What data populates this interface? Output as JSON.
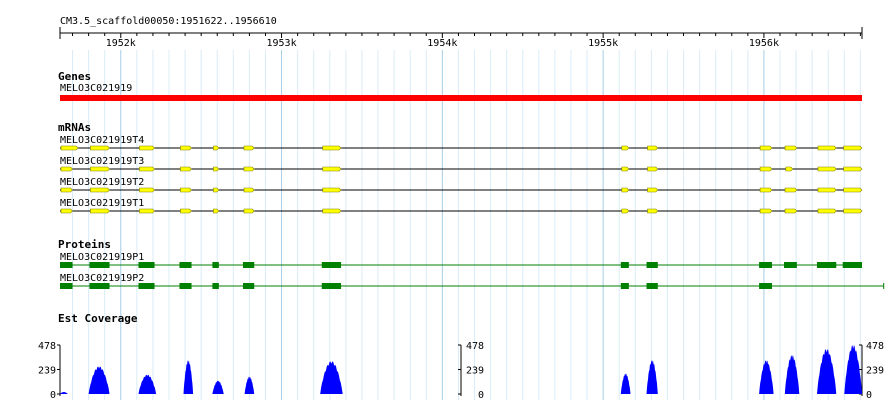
{
  "region_label": "CM3.5_scaffold00050:1951622..1956610",
  "ruler": {
    "start": 1951622,
    "end": 1956610,
    "ticks": [
      {
        "pos": 1952000,
        "label": "1952k"
      },
      {
        "pos": 1953000,
        "label": "1953k"
      },
      {
        "pos": 1954000,
        "label": "1954k"
      },
      {
        "pos": 1955000,
        "label": "1955k"
      },
      {
        "pos": 1956000,
        "label": "1956k"
      }
    ]
  },
  "tracks": {
    "genes": {
      "label": "Genes",
      "color": "#ff0000",
      "features": [
        {
          "name": "MELO3C021919",
          "start": 1951622,
          "end": 1956610
        }
      ]
    },
    "mrnas": {
      "label": "mRNAs",
      "exon_color": "#ffff00",
      "transcripts": [
        {
          "name": "MELO3C021919T4",
          "end": 1956610,
          "exons": [
            [
              1951622,
              1951735
            ],
            [
              1951805,
              1951930
            ],
            [
              1952110,
              1952210
            ],
            [
              1952365,
              1952440
            ],
            [
              1952570,
              1952610
            ],
            [
              1952760,
              1952830
            ],
            [
              1953250,
              1953370
            ],
            [
              1955110,
              1955160
            ],
            [
              1955270,
              1955340
            ],
            [
              1955970,
              1956050
            ],
            [
              1956125,
              1956205
            ],
            [
              1956330,
              1956450
            ],
            [
              1956490,
              1956610
            ]
          ]
        },
        {
          "name": "MELO3C021919T3",
          "end": 1956610,
          "exons": [
            [
              1951622,
              1951700
            ],
            [
              1951805,
              1951930
            ],
            [
              1952110,
              1952210
            ],
            [
              1952365,
              1952440
            ],
            [
              1952570,
              1952610
            ],
            [
              1952760,
              1952830
            ],
            [
              1953250,
              1953370
            ],
            [
              1955110,
              1955160
            ],
            [
              1955270,
              1955340
            ],
            [
              1955970,
              1956050
            ],
            [
              1956130,
              1956180
            ],
            [
              1956330,
              1956450
            ],
            [
              1956490,
              1956610
            ]
          ]
        },
        {
          "name": "MELO3C021919T2",
          "end": 1956610,
          "exons": [
            [
              1951622,
              1951700
            ],
            [
              1951805,
              1951930
            ],
            [
              1952110,
              1952210
            ],
            [
              1952365,
              1952440
            ],
            [
              1952570,
              1952610
            ],
            [
              1952760,
              1952830
            ],
            [
              1953250,
              1953370
            ],
            [
              1955110,
              1955160
            ],
            [
              1955270,
              1955340
            ],
            [
              1955970,
              1956050
            ],
            [
              1956125,
              1956205
            ],
            [
              1956330,
              1956450
            ],
            [
              1956490,
              1956610
            ]
          ]
        },
        {
          "name": "MELO3C021919T1",
          "end": 1956610,
          "exons": [
            [
              1951622,
              1951700
            ],
            [
              1951805,
              1951930
            ],
            [
              1952110,
              1952210
            ],
            [
              1952365,
              1952440
            ],
            [
              1952570,
              1952610
            ],
            [
              1952760,
              1952830
            ],
            [
              1953250,
              1953370
            ],
            [
              1955110,
              1955160
            ],
            [
              1955270,
              1955340
            ],
            [
              1955970,
              1956050
            ],
            [
              1956125,
              1956205
            ],
            [
              1956330,
              1956450
            ],
            [
              1956490,
              1956610
            ]
          ]
        }
      ]
    },
    "proteins": {
      "label": "Proteins",
      "color": "#008000",
      "items": [
        {
          "name": "MELO3C021919P1",
          "end": 1956610,
          "blocks": [
            [
              1951622,
              1951700
            ],
            [
              1951805,
              1951930
            ],
            [
              1952110,
              1952210
            ],
            [
              1952365,
              1952440
            ],
            [
              1952570,
              1952610
            ],
            [
              1952760,
              1952830
            ],
            [
              1953250,
              1953370
            ],
            [
              1955110,
              1955160
            ],
            [
              1955270,
              1955340
            ],
            [
              1955970,
              1956050
            ],
            [
              1956125,
              1956205
            ],
            [
              1956330,
              1956450
            ],
            [
              1956490,
              1956610
            ]
          ]
        },
        {
          "name": "MELO3C021919P2",
          "end": 1956745,
          "blocks": [
            [
              1951622,
              1951700
            ],
            [
              1951805,
              1951930
            ],
            [
              1952110,
              1952210
            ],
            [
              1952365,
              1952440
            ],
            [
              1952570,
              1952610
            ],
            [
              1952760,
              1952830
            ],
            [
              1953250,
              1953370
            ],
            [
              1955110,
              1955160
            ],
            [
              1955270,
              1955340
            ],
            [
              1955970,
              1956050
            ]
          ]
        }
      ]
    },
    "est_coverage": {
      "label": "Est Coverage",
      "color": "#0000ff",
      "max": 478,
      "y_labels": [
        "478",
        "239",
        "0"
      ],
      "peaks": [
        {
          "start": 1951622,
          "end": 1951670,
          "height": 20
        },
        {
          "start": 1951800,
          "end": 1951930,
          "height": 270
        },
        {
          "start": 1952110,
          "end": 1952220,
          "height": 190
        },
        {
          "start": 1952390,
          "end": 1952450,
          "height": 330
        },
        {
          "start": 1952570,
          "end": 1952640,
          "height": 130
        },
        {
          "start": 1952770,
          "end": 1952830,
          "height": 170
        },
        {
          "start": 1953240,
          "end": 1953380,
          "height": 320
        },
        {
          "start": 1955110,
          "end": 1955170,
          "height": 200
        },
        {
          "start": 1955270,
          "end": 1955340,
          "height": 330
        },
        {
          "start": 1955970,
          "end": 1956060,
          "height": 330
        },
        {
          "start": 1956130,
          "end": 1956220,
          "height": 380
        },
        {
          "start": 1956330,
          "end": 1956450,
          "height": 440
        },
        {
          "start": 1956500,
          "end": 1956610,
          "height": 478
        }
      ]
    }
  }
}
